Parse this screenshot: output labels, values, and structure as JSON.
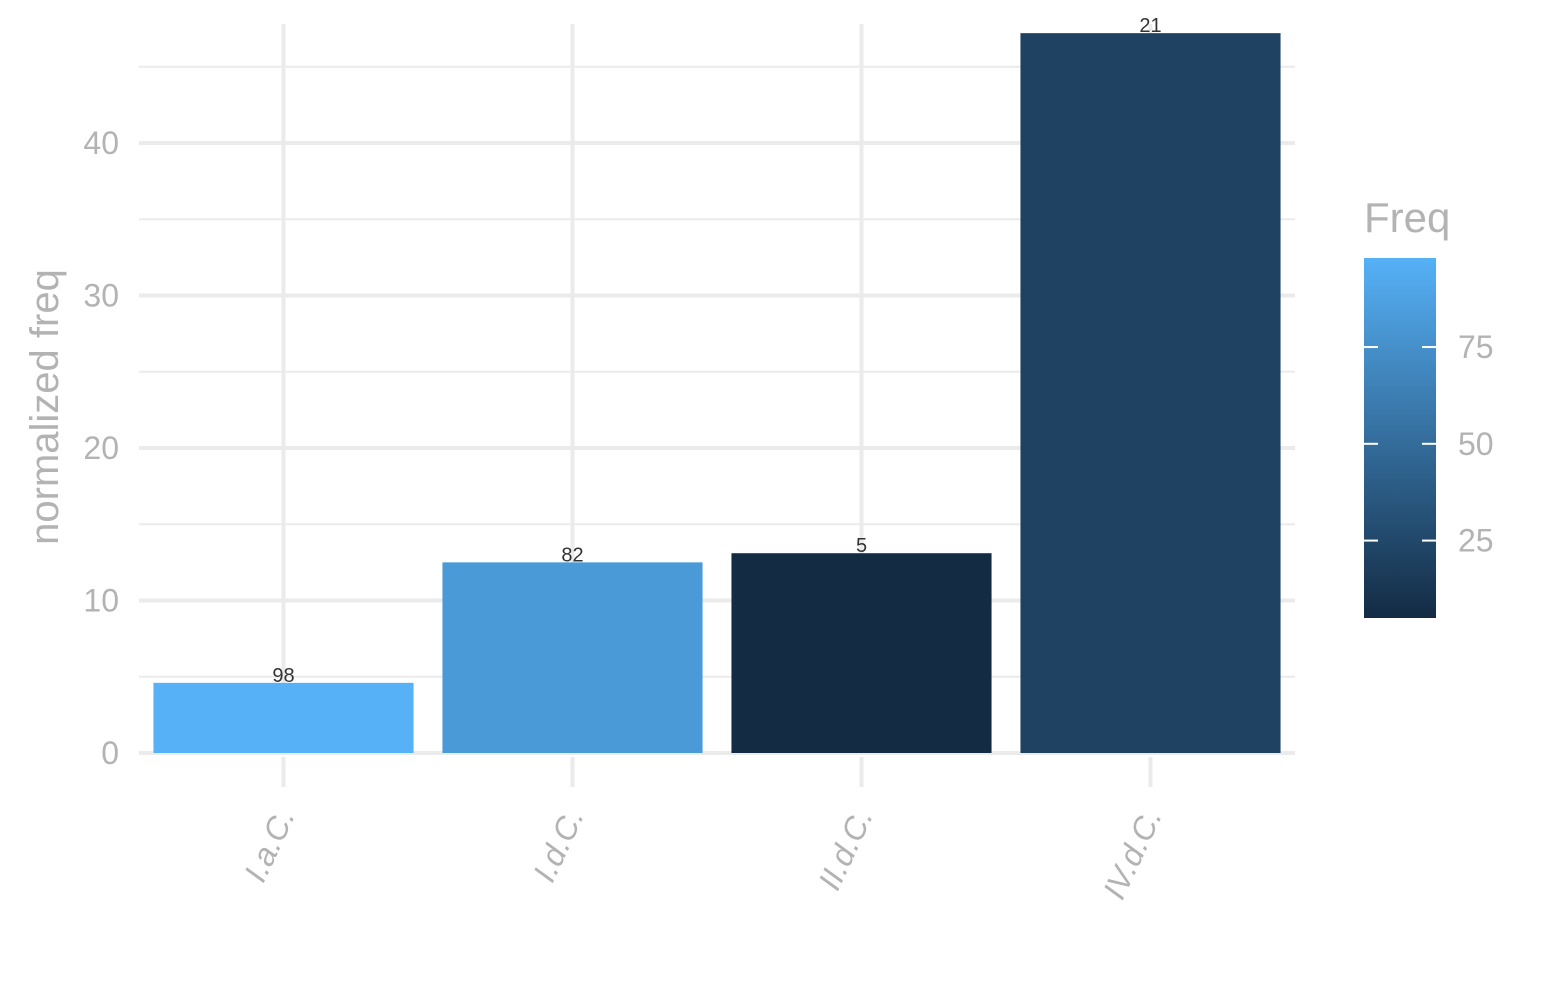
{
  "chart_data": {
    "type": "bar",
    "categories": [
      "I.a.C.",
      "I.d.C.",
      "II.d.C.",
      "IV.d.C."
    ],
    "values": [
      4.6,
      12.5,
      13.1,
      47.2
    ],
    "freq": [
      98,
      82,
      5,
      21
    ],
    "data_labels": [
      "98",
      "82",
      "5",
      "21"
    ],
    "xlabel": "",
    "ylabel": "normalized freq",
    "ylim": [
      0,
      47.8
    ],
    "y_ticks": [
      0,
      10,
      20,
      30,
      40
    ],
    "grid": true,
    "legend": {
      "title": "Freq",
      "placement": "right",
      "range": [
        5,
        98
      ],
      "ticks": [
        25,
        50,
        75
      ],
      "color_low": "#132B43",
      "color_high": "#56B1F7"
    }
  }
}
